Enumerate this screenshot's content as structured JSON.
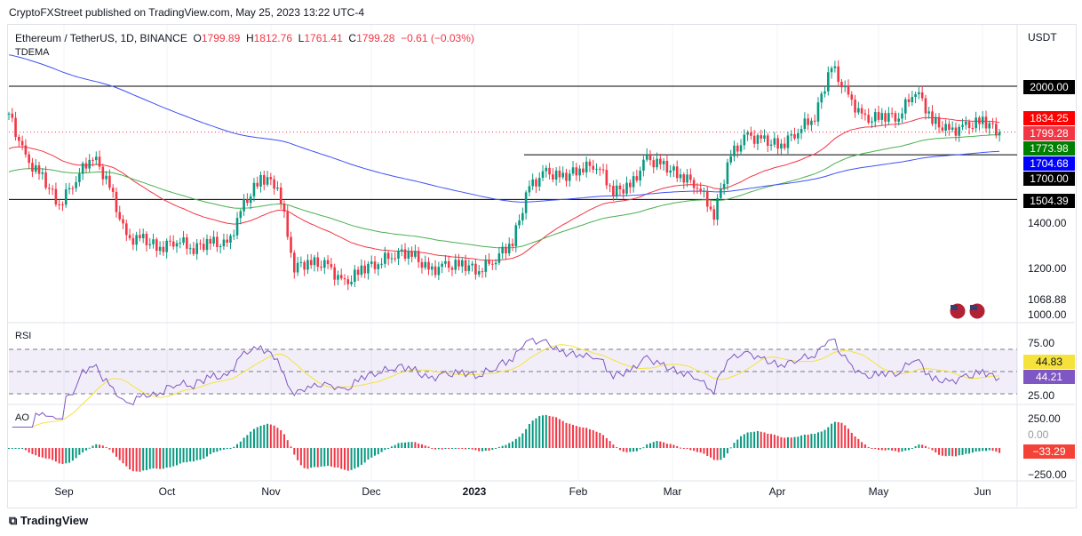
{
  "header": {
    "published": "CryptoFXStreet published on TradingView.com, May 25, 2023 13:22 UTC-4"
  },
  "legend": {
    "symbol": "Ethereum / TetherUS, 1D, BINANCE",
    "o_label": "O",
    "o": "1799.89",
    "h_label": "H",
    "h": "1812.76",
    "l_label": "L",
    "l": "1761.41",
    "c_label": "C",
    "c": "1799.28",
    "change": "−0.61 (−0.03%)",
    "indicator": "TDEMA"
  },
  "currency": "USDT",
  "price_labels": [
    {
      "text": "2000.00",
      "value": 2000,
      "color": "#000000"
    },
    {
      "text": "1834.25",
      "value": 1834.25,
      "color": "#ff0000"
    },
    {
      "text": "1799.28",
      "value": 1799.28,
      "color": "#f23645"
    },
    {
      "text": "1773.98",
      "value": 1773.98,
      "color": "#008000"
    },
    {
      "text": "1704.68",
      "value": 1704.68,
      "color": "#0000ff"
    },
    {
      "text": "1700.00",
      "value": 1700,
      "color": "#000000"
    },
    {
      "text": "1504.39",
      "value": 1504.39,
      "color": "#000000"
    }
  ],
  "price_axis": [
    "1400.00",
    "1200.00",
    "1068.88",
    "1000.00"
  ],
  "rsi": {
    "title": "RSI",
    "axis": [
      "75.00",
      "25.00"
    ],
    "ma_value": "44.83",
    "value": "44.21"
  },
  "ao": {
    "title": "AO",
    "axis": [
      "250.00",
      "0.00",
      "−250.00"
    ],
    "value": "−33.29"
  },
  "time_axis": [
    "Sep",
    "Oct",
    "Nov",
    "Dec",
    "2023",
    "Feb",
    "Mar",
    "Apr",
    "May",
    "Jun"
  ],
  "footer": {
    "brand": "TradingView"
  },
  "colors": {
    "up": "#089981",
    "down": "#f23645",
    "ema50": "#f23645",
    "ema100": "#4caf50",
    "ema200": "#3f51f5",
    "rsi": "#7e57c2",
    "rsi_ma": "#f5e23b"
  },
  "chart_data": {
    "type": "candlestick",
    "title": "Ethereum / TetherUS, 1D, BINANCE",
    "ylabel": "USDT",
    "ylim": [
      1000,
      2200
    ],
    "horizontal_levels": [
      2000,
      1700,
      1504.39
    ],
    "close_every_5_days_from_2022-08-15": [
      1880,
      1680,
      1600,
      1480,
      1600,
      1700,
      1560,
      1330,
      1330,
      1290,
      1330,
      1290,
      1320,
      1300,
      1480,
      1600,
      1570,
      1210,
      1230,
      1210,
      1130,
      1200,
      1230,
      1270,
      1270,
      1190,
      1210,
      1220,
      1195,
      1250,
      1320,
      1560,
      1620,
      1600,
      1640,
      1660,
      1540,
      1560,
      1680,
      1650,
      1610,
      1570,
      1440,
      1700,
      1780,
      1760,
      1740,
      1810,
      1870,
      2090,
      1950,
      1850,
      1870,
      1870,
      1990,
      1850,
      1800,
      1820,
      1850,
      1799.28
    ],
    "ema_seed": {
      "ema50": 1720,
      "ema100": 1620,
      "ema200": 2140
    }
  }
}
